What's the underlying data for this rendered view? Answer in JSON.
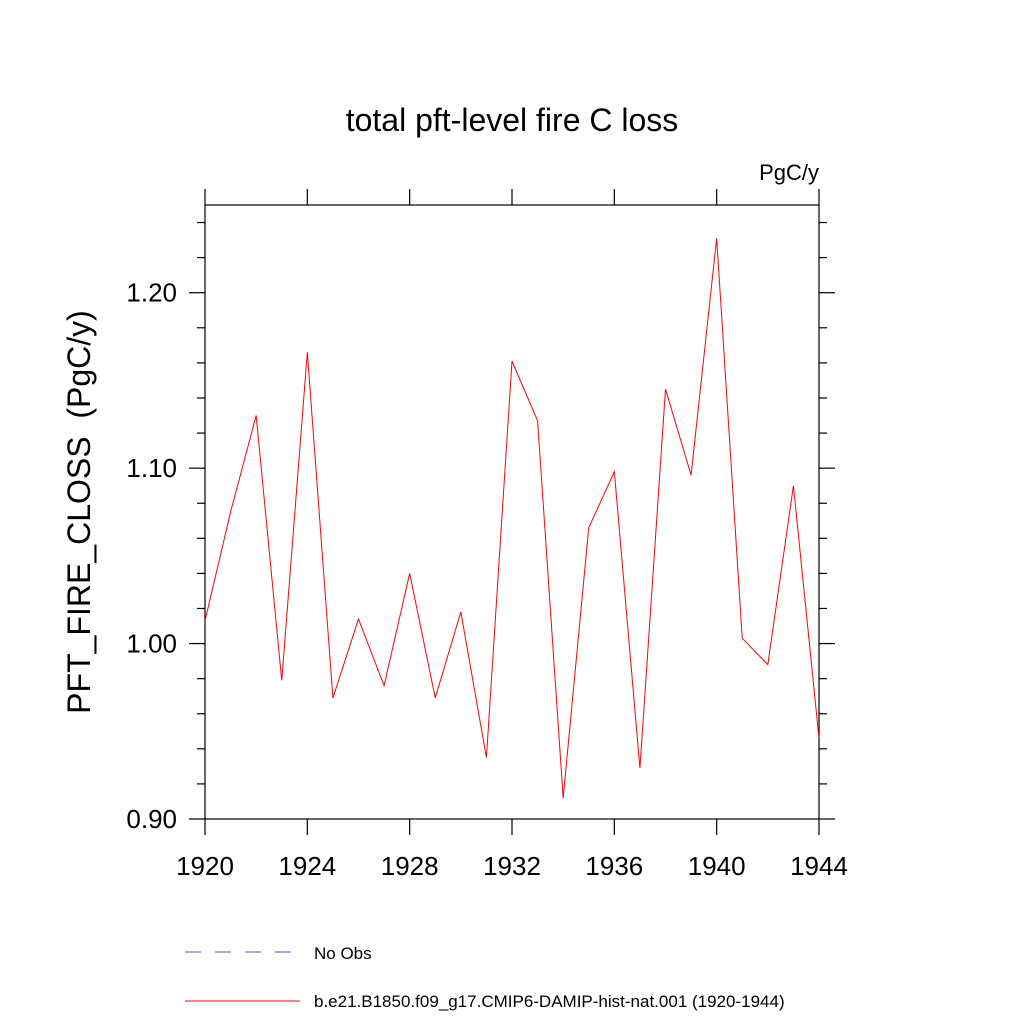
{
  "chart_data": {
    "type": "line",
    "title": "total pft-level fire C loss",
    "units": "PgC/y",
    "ylabel": "PFT_FIRE_CLOSS  (PgC/y)",
    "xlabel": "",
    "xlim": [
      1920,
      1944
    ],
    "ylim": [
      0.9,
      1.25
    ],
    "x_ticks": [
      1920,
      1924,
      1928,
      1932,
      1936,
      1940,
      1944
    ],
    "x_tick_labels": [
      "1920",
      "1924",
      "1928",
      "1932",
      "1936",
      "1940",
      "1944"
    ],
    "y_ticks": [
      0.9,
      1.0,
      1.1,
      1.2
    ],
    "y_tick_labels": [
      "0.90",
      "1.00",
      "1.10",
      "1.20"
    ],
    "grid": false,
    "legend_position": "bottom",
    "series": [
      {
        "name": "b.e21.B1850.f09_g17.CMIP6-DAMIP-hist-nat.001 (1920-1944)",
        "color": "#ff0000",
        "style": "solid",
        "x": [
          1920,
          1921,
          1922,
          1923,
          1924,
          1925,
          1926,
          1927,
          1928,
          1929,
          1930,
          1931,
          1932,
          1933,
          1934,
          1935,
          1936,
          1937,
          1938,
          1939,
          1940,
          1941,
          1942,
          1943,
          1944
        ],
        "values": [
          1.013,
          1.075,
          1.13,
          0.979,
          1.166,
          0.969,
          1.014,
          0.976,
          1.04,
          0.969,
          1.018,
          0.935,
          1.161,
          1.127,
          0.912,
          1.066,
          1.098,
          0.929,
          1.145,
          1.096,
          1.231,
          1.003,
          0.988,
          1.09,
          0.946
        ]
      }
    ],
    "legend": [
      {
        "label": "No Obs",
        "color": "#5555cc",
        "style": "dashed"
      },
      {
        "label": "b.e21.B1850.f09_g17.CMIP6-DAMIP-hist-nat.001 (1920-1944)",
        "color": "#ff0000",
        "style": "solid"
      }
    ]
  }
}
